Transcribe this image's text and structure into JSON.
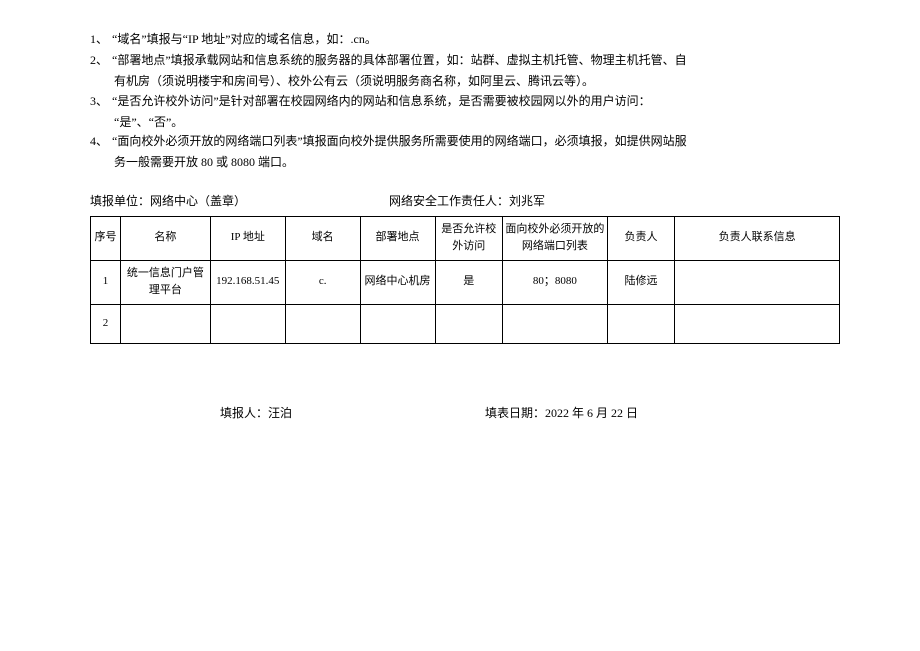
{
  "notes": [
    {
      "num": "1、",
      "lines": [
        "“域名”填报与“IP 地址”对应的域名信息，如：.cn。"
      ]
    },
    {
      "num": "2、",
      "lines": [
        "“部署地点”填报承载网站和信息系统的服务器的具体部署位置，如：站群、虚拟主机托管、物理主机托管、自",
        "有机房（须说明楼宇和房间号）、校外公有云（须说明服务商名称，如阿里云、腾讯云等）。"
      ]
    },
    {
      "num": "3、",
      "lines": [
        "“是否允许校外访问”是针对部署在校园网络内的网站和信息系统，是否需要被校园网以外的用户访问：",
        "“是”、“否”。"
      ]
    },
    {
      "num": "4、",
      "lines": [
        "“面向校外必须开放的网络端口列表”填报面向校外提供服务所需要使用的网络端口，必须填报，如提供网站服",
        "务一般需要开放 80 或 8080 端口。"
      ]
    }
  ],
  "header": {
    "unit_label": "填报单位：网络中心（盖章）",
    "sec_label": "网络安全工作责任人：刘兆军"
  },
  "table": {
    "columns": [
      "序号",
      "名称",
      "IP 地址",
      "域名",
      "部署地点",
      "是否允许校外访问",
      "面向校外必须开放的网络端口列表",
      "负责人",
      "负责人联系信息"
    ],
    "rows": [
      {
        "seq": "1",
        "name": "统一信息门户管理平台",
        "ip": "192.168.51.45",
        "domain": "c.",
        "location": "网络中心机房",
        "external": "是",
        "ports": "80；8080",
        "responsible": "陆修远",
        "contact": ""
      },
      {
        "seq": "2",
        "name": "",
        "ip": "",
        "domain": "",
        "location": "",
        "external": "",
        "ports": "",
        "responsible": "",
        "contact": ""
      }
    ]
  },
  "footer": {
    "filler": "填报人：汪泊",
    "date_label": "填表日期：2022 年 6 月 22 日"
  },
  "colors": {
    "text": "#000000",
    "background": "#ffffff",
    "border": "#000000"
  }
}
